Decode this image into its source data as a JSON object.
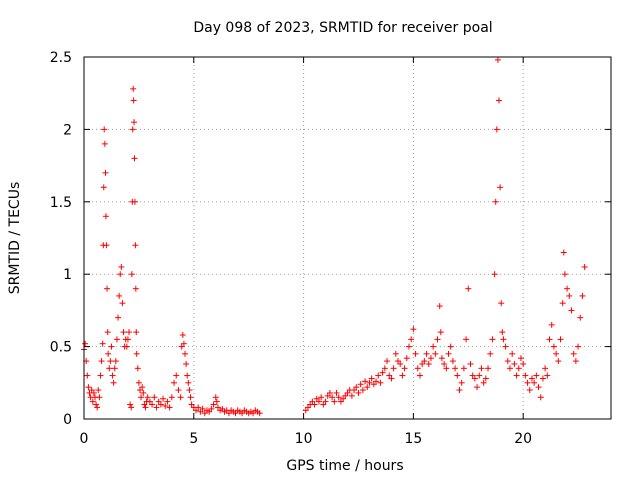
{
  "chart_data": {
    "type": "scatter",
    "title": "Day 098 of 2023, SRMTID for receiver poal",
    "xlabel": "GPS time / hours",
    "ylabel": "SRMTID / TECUs",
    "xlim": [
      0,
      24
    ],
    "ylim": [
      0,
      2.5
    ],
    "xticks": [
      0,
      5,
      10,
      15,
      20
    ],
    "xtick_labels": [
      "0",
      "5",
      "10",
      "15",
      "20"
    ],
    "yticks": [
      0,
      0.5,
      1,
      1.5,
      2,
      2.5
    ],
    "ytick_labels": [
      "0",
      "0.5",
      "1",
      "1.5",
      "2",
      "2.5"
    ],
    "grid": true,
    "marker": "+",
    "color": "#ff0000",
    "series": [
      {
        "name": "SRMTID",
        "points": [
          [
            0.0,
            0.48
          ],
          [
            0.05,
            0.52
          ],
          [
            0.1,
            0.4
          ],
          [
            0.15,
            0.3
          ],
          [
            0.2,
            0.22
          ],
          [
            0.25,
            0.18
          ],
          [
            0.3,
            0.15
          ],
          [
            0.35,
            0.2
          ],
          [
            0.4,
            0.12
          ],
          [
            0.45,
            0.18
          ],
          [
            0.5,
            0.15
          ],
          [
            0.55,
            0.1
          ],
          [
            0.6,
            0.08
          ],
          [
            0.65,
            0.2
          ],
          [
            0.7,
            0.15
          ],
          [
            0.75,
            0.3
          ],
          [
            0.8,
            0.4
          ],
          [
            0.85,
            0.52
          ],
          [
            0.88,
            1.2
          ],
          [
            0.9,
            1.6
          ],
          [
            0.92,
            2.0
          ],
          [
            0.95,
            1.9
          ],
          [
            0.98,
            1.7
          ],
          [
            1.0,
            1.4
          ],
          [
            1.02,
            1.2
          ],
          [
            1.05,
            0.9
          ],
          [
            1.08,
            0.6
          ],
          [
            1.1,
            0.45
          ],
          [
            1.15,
            0.35
          ],
          [
            1.2,
            0.4
          ],
          [
            1.25,
            0.5
          ],
          [
            1.3,
            0.3
          ],
          [
            1.35,
            0.25
          ],
          [
            1.4,
            0.35
          ],
          [
            1.45,
            0.4
          ],
          [
            1.5,
            0.55
          ],
          [
            1.55,
            0.7
          ],
          [
            1.6,
            0.85
          ],
          [
            1.65,
            1.0
          ],
          [
            1.7,
            1.05
          ],
          [
            1.75,
            0.8
          ],
          [
            1.8,
            0.6
          ],
          [
            1.85,
            0.5
          ],
          [
            1.9,
            0.55
          ],
          [
            1.95,
            0.5
          ],
          [
            2.0,
            0.55
          ],
          [
            2.05,
            0.6
          ],
          [
            2.1,
            0.1
          ],
          [
            2.15,
            0.08
          ],
          [
            2.18,
            1.0
          ],
          [
            2.2,
            1.5
          ],
          [
            2.22,
            2.0
          ],
          [
            2.24,
            2.28
          ],
          [
            2.26,
            2.2
          ],
          [
            2.28,
            2.05
          ],
          [
            2.3,
            1.8
          ],
          [
            2.32,
            1.5
          ],
          [
            2.34,
            1.2
          ],
          [
            2.36,
            0.9
          ],
          [
            2.38,
            0.6
          ],
          [
            2.4,
            0.45
          ],
          [
            2.45,
            0.35
          ],
          [
            2.5,
            0.25
          ],
          [
            2.55,
            0.2
          ],
          [
            2.6,
            0.15
          ],
          [
            2.65,
            0.22
          ],
          [
            2.7,
            0.18
          ],
          [
            2.75,
            0.1
          ],
          [
            2.8,
            0.08
          ],
          [
            2.85,
            0.12
          ],
          [
            2.9,
            0.15
          ],
          [
            3.0,
            0.12
          ],
          [
            3.1,
            0.1
          ],
          [
            3.2,
            0.15
          ],
          [
            3.3,
            0.08
          ],
          [
            3.4,
            0.12
          ],
          [
            3.5,
            0.1
          ],
          [
            3.6,
            0.14
          ],
          [
            3.7,
            0.09
          ],
          [
            3.8,
            0.12
          ],
          [
            3.9,
            0.08
          ],
          [
            4.0,
            0.15
          ],
          [
            4.1,
            0.25
          ],
          [
            4.2,
            0.3
          ],
          [
            4.3,
            0.2
          ],
          [
            4.4,
            0.15
          ],
          [
            4.45,
            0.5
          ],
          [
            4.5,
            0.58
          ],
          [
            4.55,
            0.52
          ],
          [
            4.6,
            0.45
          ],
          [
            4.65,
            0.38
          ],
          [
            4.7,
            0.3
          ],
          [
            4.75,
            0.25
          ],
          [
            4.8,
            0.2
          ],
          [
            4.85,
            0.15
          ],
          [
            4.9,
            0.1
          ],
          [
            5.0,
            0.08
          ],
          [
            5.1,
            0.06
          ],
          [
            5.2,
            0.08
          ],
          [
            5.3,
            0.05
          ],
          [
            5.4,
            0.07
          ],
          [
            5.5,
            0.04
          ],
          [
            5.6,
            0.06
          ],
          [
            5.7,
            0.05
          ],
          [
            5.8,
            0.07
          ],
          [
            5.9,
            0.1
          ],
          [
            6.0,
            0.15
          ],
          [
            6.05,
            0.12
          ],
          [
            6.1,
            0.08
          ],
          [
            6.2,
            0.06
          ],
          [
            6.3,
            0.07
          ],
          [
            6.4,
            0.05
          ],
          [
            6.5,
            0.06
          ],
          [
            6.6,
            0.04
          ],
          [
            6.7,
            0.06
          ],
          [
            6.8,
            0.05
          ],
          [
            6.9,
            0.04
          ],
          [
            7.0,
            0.06
          ],
          [
            7.1,
            0.05
          ],
          [
            7.2,
            0.04
          ],
          [
            7.3,
            0.06
          ],
          [
            7.4,
            0.05
          ],
          [
            7.5,
            0.04
          ],
          [
            7.6,
            0.05
          ],
          [
            7.7,
            0.04
          ],
          [
            7.8,
            0.06
          ],
          [
            7.9,
            0.05
          ],
          [
            8.0,
            0.04
          ],
          [
            10.1,
            0.06
          ],
          [
            10.2,
            0.08
          ],
          [
            10.3,
            0.1
          ],
          [
            10.4,
            0.12
          ],
          [
            10.5,
            0.1
          ],
          [
            10.6,
            0.14
          ],
          [
            10.7,
            0.12
          ],
          [
            10.8,
            0.15
          ],
          [
            10.9,
            0.1
          ],
          [
            11.0,
            0.12
          ],
          [
            11.1,
            0.16
          ],
          [
            11.2,
            0.18
          ],
          [
            11.3,
            0.15
          ],
          [
            11.4,
            0.12
          ],
          [
            11.5,
            0.18
          ],
          [
            11.6,
            0.15
          ],
          [
            11.7,
            0.12
          ],
          [
            11.8,
            0.14
          ],
          [
            11.9,
            0.16
          ],
          [
            12.0,
            0.18
          ],
          [
            12.1,
            0.2
          ],
          [
            12.2,
            0.16
          ],
          [
            12.3,
            0.2
          ],
          [
            12.4,
            0.22
          ],
          [
            12.5,
            0.18
          ],
          [
            12.6,
            0.24
          ],
          [
            12.7,
            0.2
          ],
          [
            12.8,
            0.26
          ],
          [
            12.9,
            0.22
          ],
          [
            13.0,
            0.25
          ],
          [
            13.1,
            0.28
          ],
          [
            13.2,
            0.24
          ],
          [
            13.3,
            0.26
          ],
          [
            13.4,
            0.3
          ],
          [
            13.5,
            0.25
          ],
          [
            13.6,
            0.32
          ],
          [
            13.7,
            0.35
          ],
          [
            13.8,
            0.4
          ],
          [
            13.9,
            0.3
          ],
          [
            14.0,
            0.28
          ],
          [
            14.1,
            0.35
          ],
          [
            14.2,
            0.45
          ],
          [
            14.3,
            0.4
          ],
          [
            14.4,
            0.38
          ],
          [
            14.5,
            0.3
          ],
          [
            14.6,
            0.35
          ],
          [
            14.7,
            0.42
          ],
          [
            14.8,
            0.5
          ],
          [
            14.9,
            0.55
          ],
          [
            15.0,
            0.62
          ],
          [
            15.1,
            0.45
          ],
          [
            15.2,
            0.35
          ],
          [
            15.3,
            0.3
          ],
          [
            15.4,
            0.38
          ],
          [
            15.5,
            0.4
          ],
          [
            15.6,
            0.45
          ],
          [
            15.7,
            0.38
          ],
          [
            15.8,
            0.42
          ],
          [
            15.9,
            0.5
          ],
          [
            16.0,
            0.45
          ],
          [
            16.1,
            0.55
          ],
          [
            16.2,
            0.78
          ],
          [
            16.25,
            0.6
          ],
          [
            16.3,
            0.42
          ],
          [
            16.4,
            0.38
          ],
          [
            16.5,
            0.35
          ],
          [
            16.6,
            0.45
          ],
          [
            16.7,
            0.5
          ],
          [
            16.8,
            0.4
          ],
          [
            16.9,
            0.35
          ],
          [
            17.0,
            0.3
          ],
          [
            17.1,
            0.2
          ],
          [
            17.2,
            0.25
          ],
          [
            17.3,
            0.35
          ],
          [
            17.4,
            0.55
          ],
          [
            17.5,
            0.9
          ],
          [
            17.6,
            0.38
          ],
          [
            17.7,
            0.3
          ],
          [
            17.8,
            0.28
          ],
          [
            17.9,
            0.22
          ],
          [
            18.0,
            0.3
          ],
          [
            18.1,
            0.35
          ],
          [
            18.2,
            0.25
          ],
          [
            18.3,
            0.28
          ],
          [
            18.4,
            0.35
          ],
          [
            18.5,
            0.45
          ],
          [
            18.6,
            0.55
          ],
          [
            18.7,
            1.0
          ],
          [
            18.75,
            1.5
          ],
          [
            18.8,
            2.0
          ],
          [
            18.85,
            2.48
          ],
          [
            18.9,
            2.2
          ],
          [
            18.95,
            1.6
          ],
          [
            19.0,
            0.8
          ],
          [
            19.05,
            0.6
          ],
          [
            19.1,
            0.55
          ],
          [
            19.2,
            0.5
          ],
          [
            19.3,
            0.4
          ],
          [
            19.4,
            0.35
          ],
          [
            19.5,
            0.45
          ],
          [
            19.6,
            0.38
          ],
          [
            19.7,
            0.3
          ],
          [
            19.8,
            0.35
          ],
          [
            19.9,
            0.42
          ],
          [
            20.0,
            0.38
          ],
          [
            20.1,
            0.3
          ],
          [
            20.2,
            0.25
          ],
          [
            20.3,
            0.2
          ],
          [
            20.4,
            0.28
          ],
          [
            20.5,
            0.25
          ],
          [
            20.6,
            0.3
          ],
          [
            20.7,
            0.22
          ],
          [
            20.8,
            0.15
          ],
          [
            20.9,
            0.28
          ],
          [
            21.0,
            0.35
          ],
          [
            21.1,
            0.3
          ],
          [
            21.2,
            0.55
          ],
          [
            21.3,
            0.65
          ],
          [
            21.4,
            0.5
          ],
          [
            21.5,
            0.45
          ],
          [
            21.6,
            0.4
          ],
          [
            21.7,
            0.55
          ],
          [
            21.8,
            0.8
          ],
          [
            21.85,
            1.15
          ],
          [
            21.9,
            1.0
          ],
          [
            22.0,
            0.9
          ],
          [
            22.1,
            0.85
          ],
          [
            22.2,
            0.75
          ],
          [
            22.3,
            0.45
          ],
          [
            22.4,
            0.4
          ],
          [
            22.5,
            0.5
          ],
          [
            22.6,
            0.7
          ],
          [
            22.7,
            0.85
          ],
          [
            22.8,
            1.05
          ]
        ]
      }
    ]
  }
}
